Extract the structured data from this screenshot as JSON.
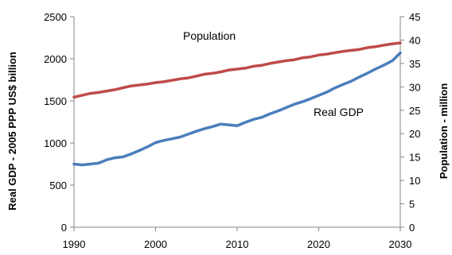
{
  "chart_data": {
    "type": "line",
    "title": "",
    "xlabel": "",
    "ylabel": "Real GDP - 2005 PPP US$ billion",
    "y2label": "Population - million",
    "xlim": [
      1990,
      2030
    ],
    "ylim": [
      0,
      2500
    ],
    "y2lim": [
      0,
      45
    ],
    "x_ticks": [
      "1990",
      "2000",
      "2010",
      "2020",
      "2030"
    ],
    "y_ticks": [
      "0",
      "500",
      "1000",
      "1500",
      "2000",
      "2500"
    ],
    "y2_ticks": [
      "0",
      "5",
      "10",
      "15",
      "20",
      "25",
      "30",
      "35",
      "40",
      "45"
    ],
    "grid": false,
    "legend": "none",
    "annotations": [
      {
        "text": "Population",
        "series": "Population"
      },
      {
        "text": "Real GDP",
        "series": "Real GDP"
      }
    ],
    "series": [
      {
        "name": "Real GDP",
        "axis": "left",
        "color": "#4a7ebb",
        "x": [
          1990,
          1991,
          1992,
          1993,
          1994,
          1995,
          1996,
          1997,
          1998,
          1999,
          2000,
          2001,
          2002,
          2003,
          2004,
          2005,
          2006,
          2007,
          2008,
          2009,
          2010,
          2011,
          2012,
          2013,
          2014,
          2015,
          2016,
          2017,
          2018,
          2019,
          2020,
          2021,
          2022,
          2023,
          2024,
          2025,
          2026,
          2027,
          2028,
          2029,
          2030
        ],
        "y": [
          750,
          740,
          750,
          760,
          800,
          825,
          835,
          870,
          910,
          955,
          1005,
          1030,
          1050,
          1070,
          1105,
          1140,
          1170,
          1195,
          1225,
          1215,
          1205,
          1245,
          1280,
          1305,
          1345,
          1380,
          1420,
          1460,
          1490,
          1525,
          1565,
          1605,
          1655,
          1695,
          1735,
          1785,
          1830,
          1880,
          1925,
          1975,
          2070
        ]
      },
      {
        "name": "Population",
        "axis": "right",
        "color": "#be4b48",
        "x": [
          1990,
          1991,
          1992,
          1993,
          1994,
          1995,
          1996,
          1997,
          1998,
          1999,
          2000,
          2001,
          2002,
          2003,
          2004,
          2005,
          2006,
          2007,
          2008,
          2009,
          2010,
          2011,
          2012,
          2013,
          2014,
          2015,
          2016,
          2017,
          2018,
          2019,
          2020,
          2021,
          2022,
          2023,
          2024,
          2025,
          2026,
          2027,
          2028,
          2029,
          2030
        ],
        "y": [
          27.8,
          28.2,
          28.6,
          28.8,
          29.1,
          29.4,
          29.8,
          30.2,
          30.4,
          30.6,
          30.9,
          31.1,
          31.4,
          31.7,
          31.9,
          32.3,
          32.7,
          32.9,
          33.2,
          33.6,
          33.8,
          34.0,
          34.4,
          34.6,
          35.0,
          35.3,
          35.6,
          35.8,
          36.2,
          36.4,
          36.8,
          37.0,
          37.3,
          37.6,
          37.8,
          38.0,
          38.4,
          38.6,
          38.9,
          39.2,
          39.4
        ]
      }
    ]
  }
}
